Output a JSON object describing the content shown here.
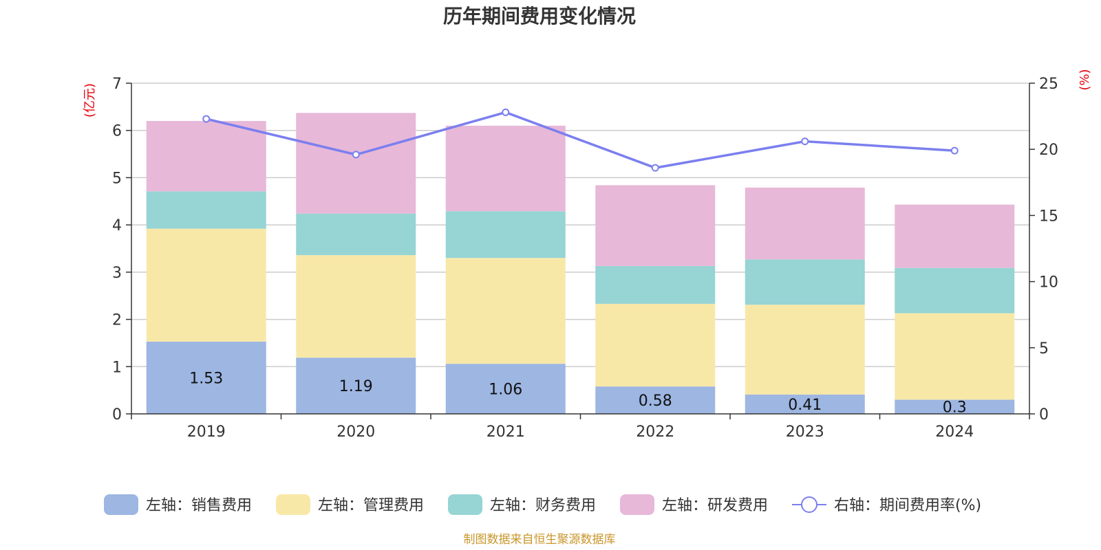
{
  "title": "历年期间费用变化情况",
  "source": "制图数据来自恒生聚源数据库",
  "chart_data": {
    "type": "bar",
    "stacked": true,
    "categories": [
      "2019",
      "2020",
      "2021",
      "2022",
      "2023",
      "2024"
    ],
    "y_left": {
      "unit": "(亿元)",
      "ylim": [
        0,
        7
      ],
      "ticks": [
        "0",
        "1",
        "2",
        "3",
        "4",
        "5",
        "6",
        "7"
      ]
    },
    "y_right": {
      "unit": "(%)",
      "ylim": [
        0,
        25
      ],
      "ticks": [
        "0",
        "5",
        "10",
        "15",
        "20",
        "25"
      ]
    },
    "series": [
      {
        "name": "左轴：销售费用",
        "color": "#9db6e2",
        "values": [
          1.53,
          1.19,
          1.06,
          0.58,
          0.41,
          0.3
        ],
        "labels": [
          "1.53",
          "1.19",
          "1.06",
          "0.58",
          "0.41",
          "0.3"
        ]
      },
      {
        "name": "左轴：管理费用",
        "color": "#f8e8a8",
        "values": [
          2.39,
          2.17,
          2.24,
          1.75,
          1.9,
          1.83
        ]
      },
      {
        "name": "左轴：财务费用",
        "color": "#97d4d4",
        "values": [
          0.79,
          0.88,
          0.99,
          0.8,
          0.96,
          0.96
        ]
      },
      {
        "name": "左轴：研发费用",
        "color": "#e7b8d8",
        "values": [
          1.49,
          2.13,
          1.81,
          1.71,
          1.52,
          1.34
        ]
      }
    ],
    "line": {
      "name": "右轴：期间费用率(%)",
      "color": "#7b7fef",
      "axis": "right",
      "values": [
        22.3,
        19.6,
        22.8,
        18.6,
        20.6,
        19.9
      ]
    },
    "grid": true,
    "legend": "bottom"
  }
}
